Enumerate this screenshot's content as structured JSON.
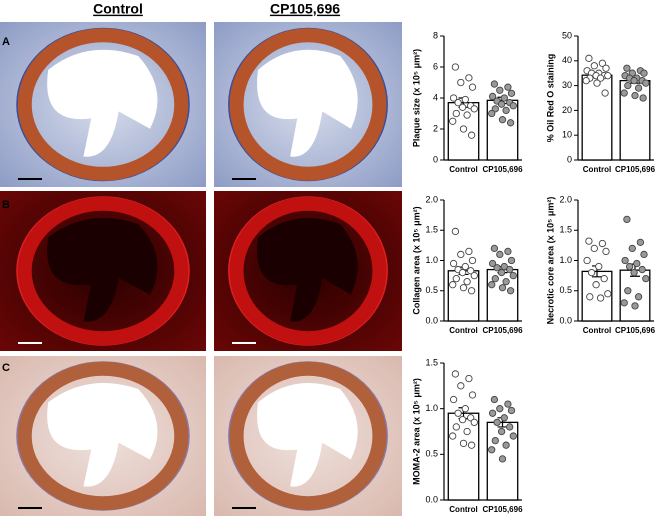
{
  "figure": {
    "panel_labels": [
      "A",
      "B",
      "C"
    ],
    "column_headers": [
      "Control",
      "CP105,696"
    ]
  },
  "chart_data": [
    {
      "type": "bar",
      "ylabel": "Plaque size (x 10⁵ μm²)",
      "categories": [
        "Control",
        "CP105,696"
      ],
      "values": [
        3.7,
        3.85
      ],
      "errors": [
        0.3,
        0.2
      ],
      "colors": [
        "#ffffff",
        "#999999"
      ],
      "points": [
        [
          6.0,
          5.3,
          5.0,
          4.7,
          4.0,
          3.9,
          3.7,
          3.5,
          3.4,
          3.3,
          3.0,
          2.9,
          2.5,
          2.0,
          1.6
        ],
        [
          4.9,
          4.7,
          4.5,
          4.3,
          4.1,
          4.0,
          3.8,
          3.7,
          3.6,
          3.5,
          3.3,
          3.2,
          3.0,
          2.6,
          2.4
        ]
      ],
      "ylim": [
        0,
        8
      ],
      "yticks": [
        0,
        2,
        4,
        6,
        8
      ]
    },
    {
      "type": "bar",
      "ylabel": "% Oil Red O staining",
      "categories": [
        "Control",
        "CP105,696"
      ],
      "values": [
        34.2,
        32.0
      ],
      "errors": [
        0.9,
        1.0
      ],
      "colors": [
        "#ffffff",
        "#999999"
      ],
      "points": [
        [
          41,
          39,
          38,
          37,
          36,
          35,
          35,
          34,
          34,
          34,
          33,
          33,
          32,
          31,
          27
        ],
        [
          37,
          36,
          35,
          35,
          34,
          33,
          33,
          32,
          32,
          31,
          30,
          29,
          27,
          26,
          25
        ]
      ],
      "ylim": [
        0,
        50
      ],
      "yticks": [
        0,
        10,
        20,
        30,
        40,
        50
      ]
    },
    {
      "type": "bar",
      "ylabel": "Collagen area (x 10⁵ μm²)",
      "categories": [
        "Control",
        "CP105,696"
      ],
      "values": [
        0.83,
        0.85
      ],
      "errors": [
        0.06,
        0.05
      ],
      "colors": [
        "#ffffff",
        "#999999"
      ],
      "points": [
        [
          1.48,
          1.15,
          1.1,
          1.0,
          0.95,
          0.9,
          0.85,
          0.83,
          0.8,
          0.75,
          0.7,
          0.65,
          0.6,
          0.55,
          0.5
        ],
        [
          1.2,
          1.15,
          1.1,
          1.0,
          0.95,
          0.9,
          0.88,
          0.85,
          0.8,
          0.75,
          0.7,
          0.65,
          0.6,
          0.55,
          0.5
        ]
      ],
      "ylim": [
        0,
        2
      ],
      "yticks": [
        {
          "value": 0,
          "label": "0.0"
        },
        0.5,
        {
          "value": 1,
          "label": "1.0"
        },
        1.5,
        {
          "value": 2,
          "label": "2.0"
        }
      ]
    },
    {
      "type": "bar",
      "ylabel": "Necrotic core area (x 10⁵ μm²)",
      "categories": [
        "Control",
        "CP105,696"
      ],
      "values": [
        0.82,
        0.84
      ],
      "errors": [
        0.09,
        0.1
      ],
      "colors": [
        "#ffffff",
        "#999999"
      ],
      "points": [
        [
          1.32,
          1.28,
          1.2,
          1.15,
          1.0,
          0.9,
          0.8,
          0.7,
          0.6,
          0.45,
          0.4,
          0.38
        ],
        [
          1.68,
          1.3,
          1.2,
          1.1,
          1.0,
          0.95,
          0.9,
          0.85,
          0.8,
          0.7,
          0.5,
          0.4,
          0.3,
          0.25
        ]
      ],
      "ylim": [
        0,
        2
      ],
      "yticks": [
        {
          "value": 0,
          "label": "0.0"
        },
        0.5,
        {
          "value": 1,
          "label": "1.0"
        },
        1.5,
        {
          "value": 2,
          "label": "2.0"
        }
      ]
    },
    {
      "type": "bar",
      "ylabel": "MOMA-2 area (x 10⁵ μm²)",
      "categories": [
        "Control",
        "CP105,696"
      ],
      "values": [
        0.95,
        0.85
      ],
      "errors": [
        0.06,
        0.05
      ],
      "colors": [
        "#ffffff",
        "#999999"
      ],
      "points": [
        [
          1.38,
          1.33,
          1.25,
          1.15,
          1.1,
          1.0,
          0.95,
          0.9,
          0.88,
          0.85,
          0.8,
          0.75,
          0.7,
          0.62,
          0.6
        ],
        [
          1.1,
          1.05,
          1.0,
          0.98,
          0.95,
          0.9,
          0.85,
          0.8,
          0.75,
          0.7,
          0.65,
          0.6,
          0.55,
          0.45
        ]
      ],
      "ylim": [
        0,
        1.5
      ],
      "yticks": [
        {
          "value": 0,
          "label": "0.0"
        },
        0.5,
        {
          "value": 1,
          "label": "1.0"
        },
        1.5
      ]
    }
  ]
}
